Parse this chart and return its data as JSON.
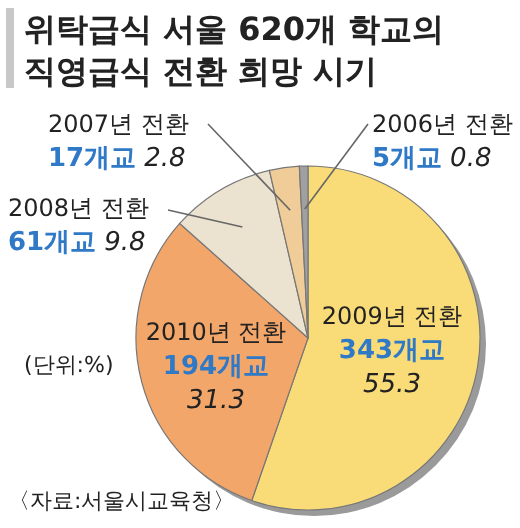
{
  "chart_data": {
    "type": "pie",
    "title": "위탁급식 서울 620개 학교의\n직영급식 전환 희망 시기",
    "categories": [
      "2009년 전환",
      "2010년 전환",
      "2008년 전환",
      "2007년 전환",
      "2006년 전환"
    ],
    "values": [
      55.3,
      31.3,
      9.8,
      2.8,
      0.8
    ],
    "colors": [
      "#f9dc78",
      "#f2a66a",
      "#ece2d0",
      "#f0cc98",
      "#a0a0a0"
    ],
    "data_labels": true,
    "annotations": [
      {
        "text": "343개교",
        "x": "2009년 전환"
      },
      {
        "text": "194개교",
        "x": "2010년 전환"
      },
      {
        "text": "61개교",
        "x": "2008년 전환"
      },
      {
        "text": "17개교",
        "x": "2007년 전환"
      },
      {
        "text": "5개교",
        "x": "2006년 전환"
      },
      "(단위:%)",
      "〈자료:서울시교육청〉"
    ]
  }
}
